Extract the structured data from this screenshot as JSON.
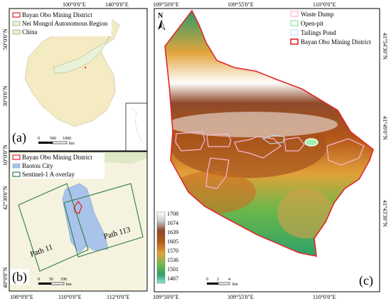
{
  "panel_a": {
    "label": "(a)",
    "legend": [
      {
        "name": "Bayan Obo Mining District",
        "color": "#e0262a"
      },
      {
        "name": "Nei Mongol Autonomous Region",
        "color": "#e9f1d8"
      },
      {
        "name": "China",
        "color": "#f4ebc3"
      }
    ],
    "top_ticks": [
      "100°0'0\"E",
      "140°0'0\"E"
    ],
    "left_ticks": [
      "50°0'0\"N",
      "30°0'0\"N",
      "10°0'0\"N"
    ],
    "scalebar": {
      "labels": [
        "0",
        "500",
        "1000"
      ],
      "unit": "km"
    }
  },
  "panel_b": {
    "label": "(b)",
    "legend": [
      {
        "name": "Bayan Obo Mining District",
        "color": "#e0262a"
      },
      {
        "name": "Baotou City",
        "color": "#a9c3ea"
      },
      {
        "name": "Sentinel-1 A overlay",
        "color": "#2e7d46"
      }
    ],
    "path_labels": [
      "Path 11",
      "Path 113"
    ],
    "bottom_ticks": [
      "108°0'0\"E",
      "110°0'0\"E",
      "112°0'0\"E"
    ],
    "left_ticks": [
      "42°30'0\"N",
      "40°0'0\"N"
    ],
    "scalebar": {
      "labels": [
        "0",
        "50",
        "100"
      ],
      "unit": "km"
    }
  },
  "panel_c": {
    "label": "(c)",
    "north": "N",
    "legend": [
      {
        "name": "Waste Dump",
        "color": "#f7b8d8"
      },
      {
        "name": "Open-pit",
        "color": "#8fe59a"
      },
      {
        "name": "Tailings Pond",
        "color": "#bfe8f8"
      },
      {
        "name": "Bayan Obo Mining District",
        "color": "#e0262a"
      }
    ],
    "top_ticks": [
      "109°50'0\"E",
      "109°55'0\"E",
      "110°0'0\"E"
    ],
    "bottom_ticks": [
      "109°50'0\"E",
      "109°55'0\"E",
      "110°0'0\"E"
    ],
    "right_ticks": [
      "41°54'30\"N",
      "41°49'0\"N",
      "41°43'30\"N"
    ],
    "elevation": {
      "values": [
        "1708",
        "1674",
        "1639",
        "1605",
        "1570",
        "1536",
        "1501",
        "1467"
      ]
    },
    "scalebar": {
      "labels": [
        "0",
        "2",
        "4"
      ],
      "unit": "km"
    }
  }
}
